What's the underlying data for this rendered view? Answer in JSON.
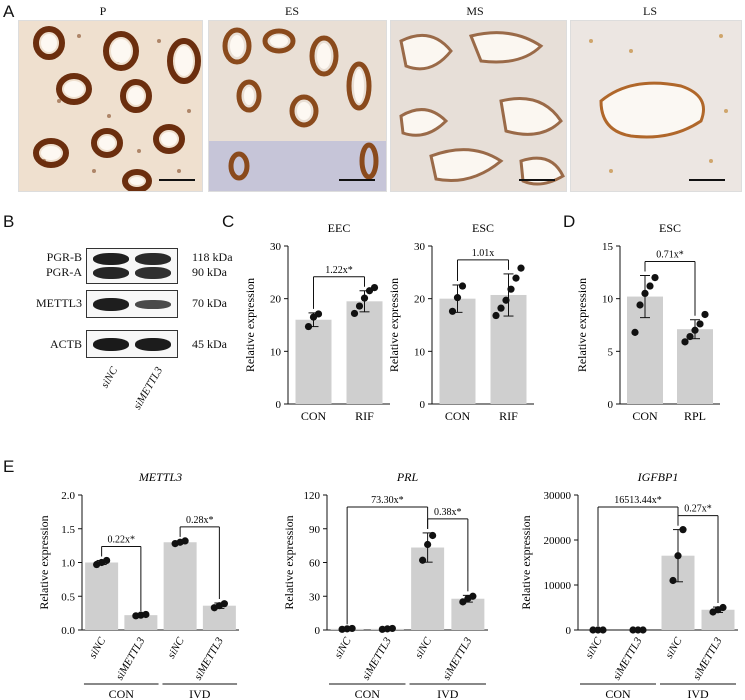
{
  "panels": {
    "a": "A",
    "b": "B",
    "c": "C",
    "d": "D",
    "e": "E"
  },
  "histology": {
    "images": [
      {
        "label": "P"
      },
      {
        "label": "ES"
      },
      {
        "label": "MS"
      },
      {
        "label": "LS"
      }
    ]
  },
  "western_blot": {
    "rows": [
      {
        "label_top": "PGR-B",
        "label_bottom": "PGR-A",
        "kda_top": "118 kDa",
        "kda_bottom": "90 kDa"
      },
      {
        "label": "METTL3",
        "kda": "70 kDa"
      },
      {
        "label": "ACTB",
        "kda": "45 kDa"
      }
    ],
    "lanes": [
      "siNC",
      "siMETTL3"
    ]
  },
  "chart_data": [
    {
      "type": "bar",
      "title": "EEC",
      "ylabel": "Relative expression",
      "categories": [
        "CON",
        "RIF"
      ],
      "values": [
        16.0,
        19.5
      ],
      "errors": [
        1.3,
        2.0
      ],
      "points": [
        [
          14.7,
          16.5,
          17.1
        ],
        [
          17.2,
          18.6,
          20.1,
          21.5,
          22.1
        ]
      ],
      "ylim": [
        0,
        30
      ],
      "yticks": [
        "0",
        "10",
        "20",
        "30"
      ],
      "comparisons": [
        {
          "from": 0,
          "to": 1,
          "label": "1.22x*"
        }
      ]
    },
    {
      "type": "bar",
      "title": "ESC",
      "ylabel": "Relative expression",
      "categories": [
        "CON",
        "RIF"
      ],
      "values": [
        20.0,
        20.7
      ],
      "errors": [
        2.6,
        4.0
      ],
      "points": [
        [
          17.6,
          20.2,
          22.4
        ],
        [
          16.8,
          18.2,
          19.7,
          21.8,
          23.9,
          25.8
        ]
      ],
      "ylim": [
        0,
        30
      ],
      "yticks": [
        "0",
        "10",
        "20",
        "30"
      ],
      "comparisons": [
        {
          "from": 0,
          "to": 1,
          "label": "1.01x"
        }
      ]
    },
    {
      "type": "bar",
      "title": "ESC",
      "ylabel": "Relative expression",
      "categories": [
        "CON",
        "RPL"
      ],
      "values": [
        10.2,
        7.1
      ],
      "errors": [
        2.0,
        0.9
      ],
      "points": [
        [
          6.8,
          9.4,
          10.5,
          11.2,
          12.0
        ],
        [
          5.9,
          6.4,
          7.0,
          7.6,
          8.5
        ]
      ],
      "ylim": [
        0,
        15
      ],
      "yticks": [
        "0",
        "5",
        "10",
        "15"
      ],
      "comparisons": [
        {
          "from": 0,
          "to": 1,
          "label": "0.71x*"
        }
      ]
    },
    {
      "type": "bar",
      "title": "METTL3",
      "ylabel": "Relative expression",
      "categories": [
        "siNC",
        "siMETTL3",
        "siNC",
        "siMETTL3"
      ],
      "groups": [
        {
          "label": "CON",
          "span": [
            0,
            1
          ]
        },
        {
          "label": "IVD",
          "span": [
            2,
            3
          ]
        }
      ],
      "values": [
        1.0,
        0.22,
        1.3,
        0.36
      ],
      "errors": [
        0.03,
        0.0,
        0.02,
        0.04
      ],
      "points": [
        [
          0.97,
          1.0,
          1.03
        ],
        [
          0.21,
          0.22,
          0.23
        ],
        [
          1.28,
          1.3,
          1.32
        ],
        [
          0.33,
          0.36,
          0.39
        ]
      ],
      "ylim": [
        0,
        2.0
      ],
      "yticks": [
        "0.0",
        "0.5",
        "1.0",
        "1.5",
        "2.0"
      ],
      "comparisons": [
        {
          "from": 0,
          "to": 1,
          "label": "0.22x*"
        },
        {
          "from": 2,
          "to": 3,
          "label": "0.28x*"
        }
      ]
    },
    {
      "type": "bar",
      "title": "PRL",
      "ylabel": "Relative expression",
      "categories": [
        "siNC",
        "siMETTL3",
        "siNC",
        "siMETTL3"
      ],
      "groups": [
        {
          "label": "CON",
          "span": [
            0,
            1
          ]
        },
        {
          "label": "IVD",
          "span": [
            2,
            3
          ]
        }
      ],
      "values": [
        1.0,
        1.0,
        73.3,
        27.8
      ],
      "errors": [
        0.5,
        0.5,
        13.0,
        3.0
      ],
      "points": [
        [
          0.6,
          1.0,
          1.4
        ],
        [
          0.6,
          1.0,
          1.4
        ],
        [
          62.0,
          76.0,
          84.0
        ],
        [
          25.0,
          28.0,
          30.0
        ]
      ],
      "ylim": [
        0,
        120
      ],
      "yticks": [
        "0",
        "30",
        "60",
        "90",
        "120"
      ],
      "comparisons": [
        {
          "from": 0,
          "to": 2,
          "label": "73.30x*"
        },
        {
          "from": 2,
          "to": 3,
          "label": "0.38x*"
        }
      ]
    },
    {
      "type": "bar",
      "title": "IGFBP1",
      "ylabel": "Relative expression",
      "categories": [
        "siNC",
        "siMETTL3",
        "siNC",
        "siMETTL3"
      ],
      "groups": [
        {
          "label": "CON",
          "span": [
            0,
            1
          ]
        },
        {
          "label": "IVD",
          "span": [
            2,
            3
          ]
        }
      ],
      "values": [
        1.0,
        1.0,
        16513.44,
        4500
      ],
      "errors": [
        0,
        0,
        5800,
        600
      ],
      "points": [
        [
          0,
          0,
          0
        ],
        [
          0,
          0,
          0
        ],
        [
          11000,
          16500,
          22300
        ],
        [
          4000,
          4500,
          5000
        ]
      ],
      "ylim": [
        0,
        30000
      ],
      "yticks": [
        "0",
        "10000",
        "20000",
        "30000"
      ],
      "comparisons": [
        {
          "from": 0,
          "to": 2,
          "label": "16513.44x*"
        },
        {
          "from": 2,
          "to": 3,
          "label": "0.27x*"
        }
      ]
    }
  ]
}
